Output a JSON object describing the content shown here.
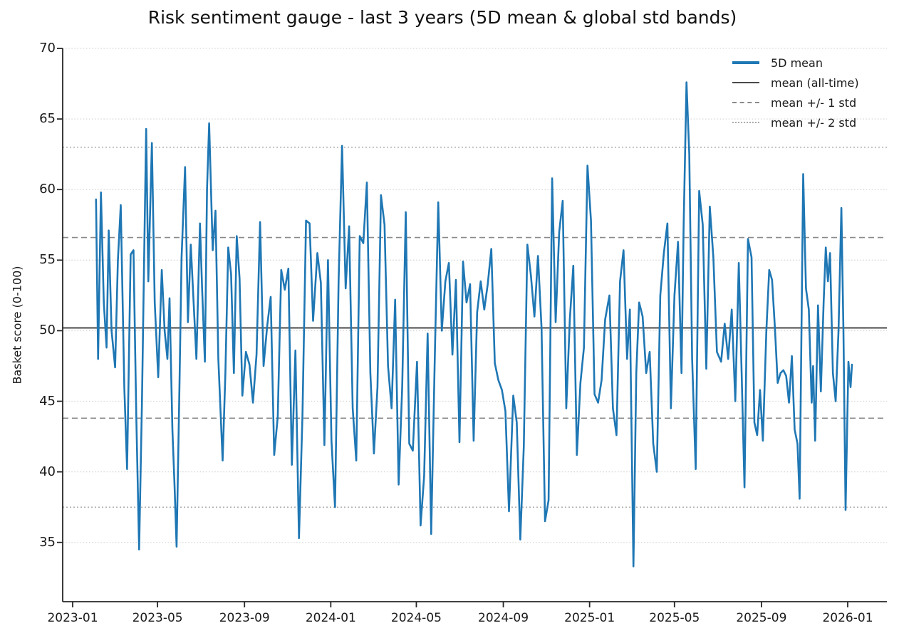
{
  "chart_data": {
    "type": "line",
    "title": "Risk sentiment gauge - last 3 years (5D mean & global std bands)",
    "xlabel": "",
    "ylabel": "Basket score (0-100)",
    "ylim": [
      30.8,
      70
    ],
    "yticks": [
      35,
      40,
      45,
      50,
      55,
      60,
      65,
      70
    ],
    "xticks": [
      "2023-01",
      "2023-05",
      "2023-09",
      "2024-01",
      "2024-05",
      "2024-09",
      "2025-01",
      "2025-05",
      "2025-09",
      "2026-01"
    ],
    "grid": "horizontal dotted gridlines at each y tick",
    "legend_position": "upper right, no frame",
    "bands": {
      "mean": 50.2,
      "mean_plus_1std": 56.6,
      "mean_minus_1std": 43.8,
      "mean_plus_2std": 63.0,
      "mean_minus_2std": 37.5,
      "implied_std": 6.4
    },
    "legend": [
      {
        "label": "5D mean",
        "style": "solid thick",
        "color": "#1f77b4"
      },
      {
        "label": "mean (all-time)",
        "style": "solid",
        "color": "#4a4a4a"
      },
      {
        "label": "mean +/- 1 std",
        "style": "dashed",
        "color": "#8a8a8a"
      },
      {
        "label": "mean +/- 2 std",
        "style": "dotted",
        "color": "#ababab"
      }
    ],
    "series": [
      {
        "name": "5D mean",
        "color": "#1f77b4",
        "dates": [
          "2023-02-03",
          "2023-02-06",
          "2023-02-10",
          "2023-02-14",
          "2023-02-18",
          "2023-02-21",
          "2023-02-25",
          "2023-03-02",
          "2023-03-06",
          "2023-03-10",
          "2023-03-15",
          "2023-03-19",
          "2023-03-24",
          "2023-03-28",
          "2023-04-01",
          "2023-04-05",
          "2023-04-09",
          "2023-04-12",
          "2023-04-15",
          "2023-04-18",
          "2023-04-23",
          "2023-04-27",
          "2023-05-02",
          "2023-05-07",
          "2023-05-11",
          "2023-05-15",
          "2023-05-18",
          "2023-05-22",
          "2023-05-25",
          "2023-05-28",
          "2023-06-01",
          "2023-06-04",
          "2023-06-09",
          "2023-06-13",
          "2023-06-17",
          "2023-06-21",
          "2023-06-25",
          "2023-06-30",
          "2023-07-03",
          "2023-07-07",
          "2023-07-10",
          "2023-07-13",
          "2023-07-18",
          "2023-07-22",
          "2023-07-26",
          "2023-08-01",
          "2023-08-05",
          "2023-08-09",
          "2023-08-13",
          "2023-08-17",
          "2023-08-21",
          "2023-08-25",
          "2023-08-29",
          "2023-09-03",
          "2023-09-08",
          "2023-09-13",
          "2023-09-18",
          "2023-09-23",
          "2023-09-28",
          "2023-10-03",
          "2023-10-08",
          "2023-10-13",
          "2023-10-18",
          "2023-10-23",
          "2023-10-28",
          "2023-11-02",
          "2023-11-07",
          "2023-11-12",
          "2023-11-17",
          "2023-11-22",
          "2023-11-27",
          "2023-12-02",
          "2023-12-07",
          "2023-12-13",
          "2023-12-18",
          "2023-12-23",
          "2023-12-28",
          "2024-01-02",
          "2024-01-07",
          "2024-01-12",
          "2024-01-17",
          "2024-01-22",
          "2024-01-27",
          "2024-02-01",
          "2024-02-06",
          "2024-02-11",
          "2024-02-16",
          "2024-02-21",
          "2024-02-26",
          "2024-03-02",
          "2024-03-07",
          "2024-03-12",
          "2024-03-17",
          "2024-03-22",
          "2024-03-27",
          "2024-04-01",
          "2024-04-06",
          "2024-04-11",
          "2024-04-16",
          "2024-04-21",
          "2024-04-26",
          "2024-05-02",
          "2024-05-07",
          "2024-05-12",
          "2024-05-17",
          "2024-05-22",
          "2024-05-27",
          "2024-06-01",
          "2024-06-06",
          "2024-06-11",
          "2024-06-16",
          "2024-06-21",
          "2024-06-26",
          "2024-07-01",
          "2024-07-06",
          "2024-07-11",
          "2024-07-16",
          "2024-07-21",
          "2024-07-26",
          "2024-07-31",
          "2024-08-05",
          "2024-08-10",
          "2024-08-15",
          "2024-08-20",
          "2024-08-25",
          "2024-08-30",
          "2024-09-04",
          "2024-09-09",
          "2024-09-15",
          "2024-09-20",
          "2024-09-25",
          "2024-09-30",
          "2024-10-05",
          "2024-10-10",
          "2024-10-15",
          "2024-10-20",
          "2024-10-25",
          "2024-10-30",
          "2024-11-04",
          "2024-11-09",
          "2024-11-14",
          "2024-11-19",
          "2024-11-24",
          "2024-11-29",
          "2024-12-04",
          "2024-12-09",
          "2024-12-14",
          "2024-12-19",
          "2024-12-24",
          "2024-12-29",
          "2025-01-03",
          "2025-01-08",
          "2025-01-13",
          "2025-01-18",
          "2025-01-23",
          "2025-01-29",
          "2025-02-03",
          "2025-02-08",
          "2025-02-13",
          "2025-02-18",
          "2025-02-23",
          "2025-02-27",
          "2025-03-04",
          "2025-03-08",
          "2025-03-12",
          "2025-03-17",
          "2025-03-22",
          "2025-03-27",
          "2025-04-01",
          "2025-04-06",
          "2025-04-11",
          "2025-04-16",
          "2025-04-21",
          "2025-04-26",
          "2025-05-01",
          "2025-05-06",
          "2025-05-11",
          "2025-05-14",
          "2025-05-18",
          "2025-05-22",
          "2025-05-26",
          "2025-05-31",
          "2025-06-05",
          "2025-06-10",
          "2025-06-15",
          "2025-06-20",
          "2025-06-25",
          "2025-06-30",
          "2025-07-06",
          "2025-07-11",
          "2025-07-16",
          "2025-07-21",
          "2025-07-26",
          "2025-07-31",
          "2025-08-04",
          "2025-08-08",
          "2025-08-13",
          "2025-08-18",
          "2025-08-22",
          "2025-08-26",
          "2025-08-30",
          "2025-09-03",
          "2025-09-08",
          "2025-09-12",
          "2025-09-16",
          "2025-09-20",
          "2025-09-24",
          "2025-09-28",
          "2025-10-02",
          "2025-10-06",
          "2025-10-10",
          "2025-10-14",
          "2025-10-18",
          "2025-10-22",
          "2025-10-25",
          "2025-10-30",
          "2025-11-03",
          "2025-11-07",
          "2025-11-11",
          "2025-11-13",
          "2025-11-16",
          "2025-11-20",
          "2025-11-24",
          "2025-11-28",
          "2025-12-01",
          "2025-12-04",
          "2025-12-07",
          "2025-12-11",
          "2025-12-15",
          "2025-12-19",
          "2025-12-23",
          "2025-12-26",
          "2025-12-29",
          "2026-01-02",
          "2026-01-05",
          "2026-01-07"
        ],
        "values": [
          59.3,
          48.0,
          59.8,
          52.0,
          48.8,
          57.1,
          50.0,
          47.4,
          55.0,
          58.9,
          46.0,
          40.2,
          55.4,
          55.7,
          44.0,
          34.5,
          45.0,
          55.0,
          64.3,
          53.5,
          63.3,
          52.0,
          46.7,
          54.3,
          50.0,
          48.0,
          52.3,
          43.0,
          39.2,
          34.7,
          46.0,
          55.2,
          61.6,
          50.6,
          56.1,
          52.0,
          48.0,
          57.6,
          53.0,
          47.8,
          60.0,
          64.7,
          55.7,
          58.5,
          48.0,
          40.8,
          47.0,
          55.9,
          54.0,
          47.0,
          56.7,
          53.7,
          45.4,
          48.5,
          47.6,
          44.9,
          48.3,
          57.7,
          47.5,
          50.3,
          52.4,
          41.2,
          43.9,
          54.3,
          52.9,
          54.4,
          40.5,
          48.6,
          35.3,
          44.0,
          57.8,
          57.6,
          50.7,
          55.5,
          53.4,
          41.9,
          55.0,
          42.2,
          37.5,
          53.5,
          63.1,
          53.0,
          57.4,
          44.5,
          40.8,
          56.7,
          56.2,
          60.5,
          47.0,
          41.3,
          46.0,
          59.6,
          57.5,
          47.5,
          44.5,
          52.2,
          39.1,
          46.0,
          58.4,
          42.0,
          41.5,
          47.8,
          36.2,
          39.7,
          49.8,
          35.6,
          48.0,
          59.1,
          50.0,
          53.5,
          54.8,
          48.3,
          53.6,
          42.1,
          54.9,
          52.0,
          53.3,
          42.2,
          51.3,
          53.5,
          51.5,
          53.3,
          55.8,
          47.7,
          46.5,
          45.8,
          44.3,
          37.2,
          45.4,
          43.5,
          35.2,
          41.8,
          56.1,
          53.9,
          51.0,
          55.3,
          50.2,
          36.5,
          38.0,
          60.8,
          50.6,
          57.0,
          59.2,
          44.5,
          50.8,
          54.6,
          41.2,
          46.3,
          48.8,
          61.7,
          57.8,
          45.5,
          44.9,
          46.5,
          50.8,
          52.5,
          44.5,
          42.6,
          53.5,
          55.7,
          48.0,
          51.5,
          33.3,
          47.0,
          52.0,
          51.0,
          47.0,
          48.5,
          42.0,
          40.0,
          52.5,
          55.5,
          57.6,
          44.5,
          52.5,
          56.3,
          47.0,
          57.5,
          67.6,
          62.5,
          48.0,
          40.2,
          59.9,
          57.5,
          47.3,
          58.8,
          55.2,
          48.5,
          47.8,
          50.5,
          48.0,
          51.5,
          45.0,
          54.8,
          47.0,
          38.9,
          56.5,
          55.2,
          43.5,
          42.6,
          45.8,
          42.2,
          50.0,
          54.3,
          53.6,
          50.2,
          46.3,
          47.0,
          47.2,
          46.8,
          44.9,
          48.2,
          43.0,
          42.0,
          38.1,
          61.1,
          53.0,
          51.5,
          44.9,
          47.5,
          42.2,
          51.8,
          45.7,
          52.0,
          55.9,
          53.5,
          55.5,
          47.0,
          45.0,
          50.0,
          58.7,
          50.0,
          37.3,
          47.8,
          46.0,
          47.6
        ]
      }
    ],
    "colors": {
      "series_blue": "#1f77b4",
      "mean_line": "#4a4a4a",
      "std1_line": "#8a8a8a",
      "std2_line": "#ababab",
      "gridline": "#d6d6d6",
      "spine": "#262626"
    }
  }
}
